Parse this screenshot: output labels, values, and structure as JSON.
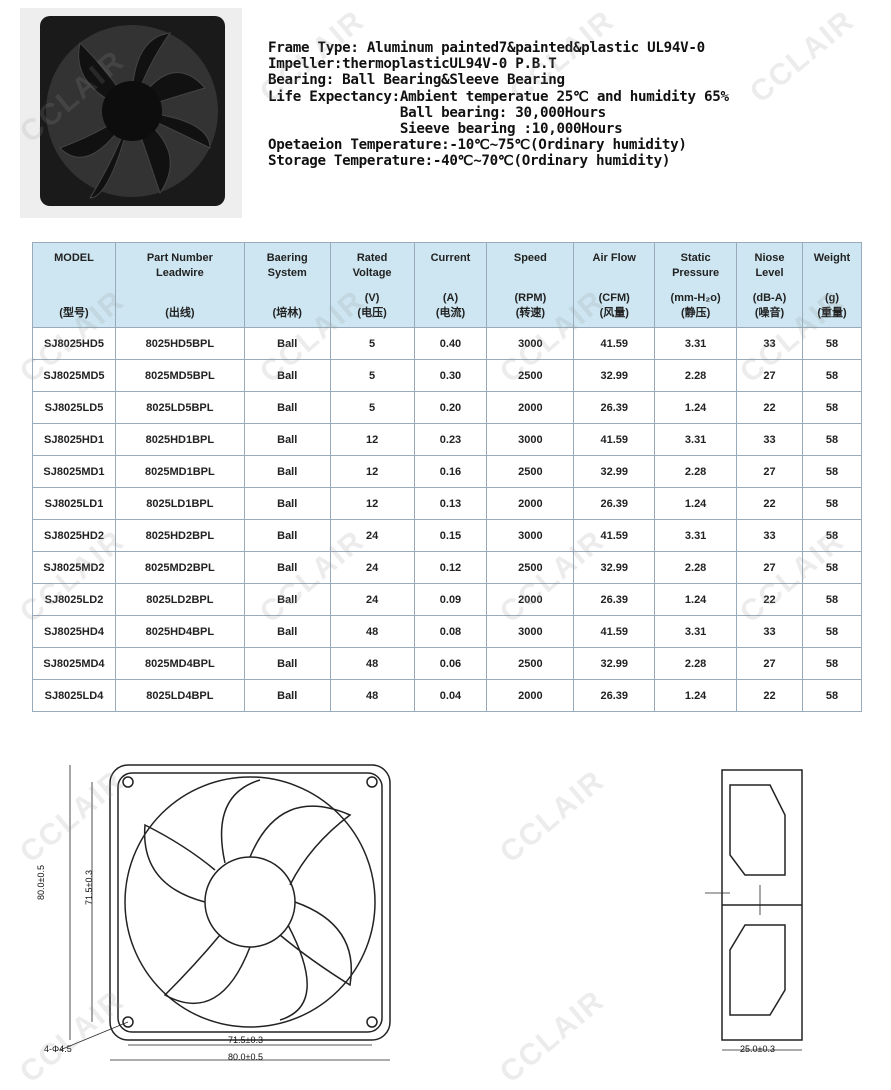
{
  "specs": {
    "lines": [
      "Frame Type: Aluminum painted7&painted&plastic UL94V-0",
      "Impeller:thermoplasticUL94V-0 P.B.T",
      "Bearing: Ball Bearing&Sleeve Bearing",
      "Life Expectancy:Ambient temperatue 25℃ and humidity 65%",
      "                Ball bearing: 30,000Hours",
      "                Sieeve bearing :10,000Hours",
      "Opetaeion Temperature:-10℃~75℃(Ordinary humidity)",
      "Storage Temperature:-40℃~70℃(Ordinary humidity)"
    ]
  },
  "table": {
    "headers": [
      {
        "t": "MODEL",
        "u": "(型号)"
      },
      {
        "t": "Part Number\nLeadwire",
        "u": "(出线)"
      },
      {
        "t": "Baering\nSystem",
        "u": "(培林)"
      },
      {
        "t": "Rated\nVoltage",
        "u": "(V)\n(电压)"
      },
      {
        "t": "Current",
        "u": "(A)\n(电流)"
      },
      {
        "t": "Speed",
        "u": "(RPM)\n(转速)"
      },
      {
        "t": "Air Flow",
        "u": "(CFM)\n(风量)"
      },
      {
        "t": "Static\nPressure",
        "u": "(mm-H₂o)\n(静压)"
      },
      {
        "t": "Niose\nLevel",
        "u": "(dB-A)\n(噪音)"
      },
      {
        "t": "Weight",
        "u": "(g)\n(重量)"
      }
    ],
    "rows": [
      [
        "SJ8025HD5",
        "8025HD5BPL",
        "Ball",
        "5",
        "0.40",
        "3000",
        "41.59",
        "3.31",
        "33",
        "58"
      ],
      [
        "SJ8025MD5",
        "8025MD5BPL",
        "Ball",
        "5",
        "0.30",
        "2500",
        "32.99",
        "2.28",
        "27",
        "58"
      ],
      [
        "SJ8025LD5",
        "8025LD5BPL",
        "Ball",
        "5",
        "0.20",
        "2000",
        "26.39",
        "1.24",
        "22",
        "58"
      ],
      [
        "SJ8025HD1",
        "8025HD1BPL",
        "Ball",
        "12",
        "0.23",
        "3000",
        "41.59",
        "3.31",
        "33",
        "58"
      ],
      [
        "SJ8025MD1",
        "8025MD1BPL",
        "Ball",
        "12",
        "0.16",
        "2500",
        "32.99",
        "2.28",
        "27",
        "58"
      ],
      [
        "SJ8025LD1",
        "8025LD1BPL",
        "Ball",
        "12",
        "0.13",
        "2000",
        "26.39",
        "1.24",
        "22",
        "58"
      ],
      [
        "SJ8025HD2",
        "8025HD2BPL",
        "Ball",
        "24",
        "0.15",
        "3000",
        "41.59",
        "3.31",
        "33",
        "58"
      ],
      [
        "SJ8025MD2",
        "8025MD2BPL",
        "Ball",
        "24",
        "0.12",
        "2500",
        "32.99",
        "2.28",
        "27",
        "58"
      ],
      [
        "SJ8025LD2",
        "8025LD2BPL",
        "Ball",
        "24",
        "0.09",
        "2000",
        "26.39",
        "1.24",
        "22",
        "58"
      ],
      [
        "SJ8025HD4",
        "8025HD4BPL",
        "Ball",
        "48",
        "0.08",
        "3000",
        "41.59",
        "3.31",
        "33",
        "58"
      ],
      [
        "SJ8025MD4",
        "8025MD4BPL",
        "Ball",
        "48",
        "0.06",
        "2500",
        "32.99",
        "2.28",
        "27",
        "58"
      ],
      [
        "SJ8025LD4",
        "8025LD4BPL",
        "Ball",
        "48",
        "0.04",
        "2000",
        "26.39",
        "1.24",
        "22",
        "58"
      ]
    ]
  },
  "drawing": {
    "outer_w": "80.0±0.5",
    "inner_w": "71.5±0.3",
    "outer_h": "80.0±0.5",
    "inner_h": "71.5±0.3",
    "holes": "4-Φ4.5",
    "depth": "25.0±0.3"
  },
  "watermark": "CCLAIR",
  "colors": {
    "header_bg": "#cde6f1",
    "border": "#99aabb"
  }
}
